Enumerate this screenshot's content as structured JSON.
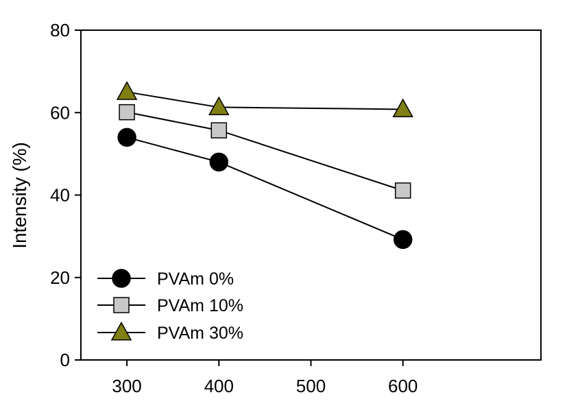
{
  "chart_data": {
    "type": "line",
    "title": "",
    "xlabel": "",
    "ylabel": "Intensity (%)",
    "x": [
      300,
      400,
      600
    ],
    "xlim": [
      250,
      750
    ],
    "ylim": [
      0,
      80
    ],
    "x_ticks": [
      "300",
      "400",
      "500",
      "600"
    ],
    "y_ticks": [
      "0",
      "20",
      "40",
      "60",
      "80"
    ],
    "grid": false,
    "legend_position": "bottom-left",
    "series": [
      {
        "name": "PVAm 0%",
        "values": [
          54,
          48,
          29.2
        ],
        "marker": "circle",
        "color": "#000000"
      },
      {
        "name": "PVAm 10%",
        "values": [
          60.1,
          55.7,
          41.1
        ],
        "marker": "square",
        "color": "#c8c8c8"
      },
      {
        "name": "PVAm 30%",
        "values": [
          65,
          61.3,
          60.8
        ],
        "marker": "triangle",
        "color": "#7f7f13"
      }
    ]
  }
}
